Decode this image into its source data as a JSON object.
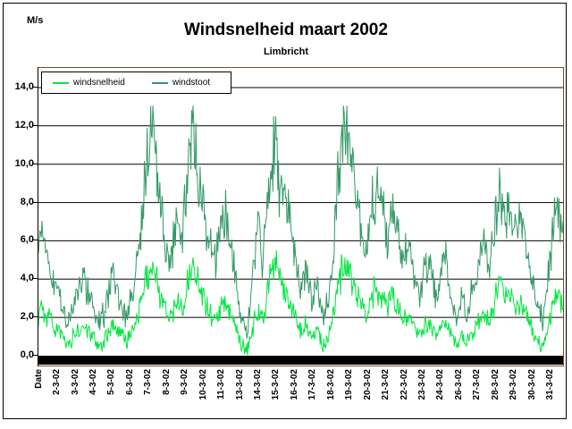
{
  "header": {
    "unit_label": "M/s",
    "title": "Windsnelheid maart 2002",
    "subtitle": "Limbricht"
  },
  "colors": {
    "windsnelheid": "#00e640",
    "windstoot": "#339966",
    "plot_border": "#7f4a1d",
    "axis": "#000000",
    "background": "#ffffff"
  },
  "chart_data": {
    "type": "line",
    "title": "Windsnelheid maart 2002",
    "subtitle": "Limbricht",
    "ylabel": "M/s",
    "xlabel": "",
    "grid": "horizontal",
    "legend_position": "top-left-inside",
    "ylim": [
      0,
      15.2
    ],
    "ytick_step": 2,
    "ytick_values": [
      0,
      2,
      4,
      6,
      8,
      10,
      12,
      14
    ],
    "ytick_labels": [
      "0,0",
      "2,0",
      "4,0",
      "6,0",
      "8,0",
      "10,0",
      "12,0",
      "14,0"
    ],
    "xtick_labels": [
      "Date",
      "2-3-02",
      "3-3-02",
      "4-3-02",
      "5-3-02",
      "6-3-02",
      "7-3-02",
      "8-3-02",
      "9-3-02",
      "10-3-02",
      "11-3-02",
      "13-3-02",
      "14-3-02",
      "15-3-02",
      "16-3-02",
      "17-3-02",
      "18-3-02",
      "19-3-02",
      "20-3-02",
      "21-3-02",
      "22-3-02",
      "23-3-02",
      "24-3-02",
      "26-3-02",
      "27-3-02",
      "28-3-02",
      "29-3-02",
      "30-3-02",
      "31-3-02"
    ],
    "x_period": "1 March 2002 - 31 March 2002, high-frequency samples",
    "series": [
      {
        "name": "windsnelheid",
        "color": "#00e640",
        "noise": {
          "rel": 0.18,
          "abs": 0.38,
          "min": 0.02,
          "max": 5.5
        },
        "anchors": [
          [
            0,
            2.2
          ],
          [
            4,
            2.7
          ],
          [
            10,
            2.0
          ],
          [
            18,
            1.5
          ],
          [
            26,
            1.0
          ],
          [
            34,
            0.6
          ],
          [
            42,
            1.2
          ],
          [
            51,
            1.5
          ],
          [
            58,
            1.1
          ],
          [
            66,
            0.5
          ],
          [
            74,
            0.7
          ],
          [
            83,
            1.6
          ],
          [
            90,
            1.0
          ],
          [
            98,
            0.8
          ],
          [
            106,
            1.4
          ],
          [
            113,
            2.6
          ],
          [
            120,
            3.8
          ],
          [
            126,
            4.6
          ],
          [
            131,
            4.3
          ],
          [
            136,
            3.2
          ],
          [
            142,
            2.4
          ],
          [
            148,
            2.0
          ],
          [
            154,
            2.9
          ],
          [
            160,
            2.4
          ],
          [
            166,
            3.7
          ],
          [
            173,
            4.9
          ],
          [
            178,
            4.0
          ],
          [
            184,
            3.1
          ],
          [
            191,
            2.3
          ],
          [
            198,
            1.9
          ],
          [
            205,
            2.6
          ],
          [
            210,
            2.8
          ],
          [
            216,
            2.0
          ],
          [
            222,
            1.2
          ],
          [
            228,
            0.5
          ],
          [
            234,
            0.3
          ],
          [
            240,
            1.6
          ],
          [
            246,
            2.5
          ],
          [
            251,
            1.7
          ],
          [
            256,
            3.4
          ],
          [
            262,
            4.8
          ],
          [
            266,
            5.2
          ],
          [
            271,
            3.6
          ],
          [
            276,
            3.4
          ],
          [
            282,
            2.8
          ],
          [
            288,
            2.0
          ],
          [
            294,
            1.3
          ],
          [
            300,
            1.7
          ],
          [
            306,
            0.9
          ],
          [
            312,
            1.4
          ],
          [
            318,
            0.6
          ],
          [
            324,
            0.9
          ],
          [
            330,
            2.2
          ],
          [
            336,
            3.9
          ],
          [
            342,
            4.7
          ],
          [
            348,
            4.5
          ],
          [
            354,
            3.6
          ],
          [
            360,
            2.7
          ],
          [
            366,
            1.9
          ],
          [
            372,
            3.0
          ],
          [
            378,
            3.6
          ],
          [
            384,
            3.4
          ],
          [
            390,
            2.6
          ],
          [
            396,
            3.1
          ],
          [
            402,
            2.5
          ],
          [
            408,
            1.9
          ],
          [
            414,
            2.2
          ],
          [
            420,
            1.5
          ],
          [
            426,
            1.1
          ],
          [
            432,
            1.6
          ],
          [
            438,
            1.8
          ],
          [
            444,
            1.0
          ],
          [
            450,
            1.4
          ],
          [
            456,
            2.0
          ],
          [
            462,
            0.9
          ],
          [
            468,
            0.6
          ],
          [
            474,
            1.1
          ],
          [
            480,
            0.7
          ],
          [
            486,
            1.2
          ],
          [
            492,
            1.7
          ],
          [
            498,
            2.4
          ],
          [
            504,
            1.8
          ],
          [
            510,
            2.7
          ],
          [
            516,
            3.8
          ],
          [
            522,
            3.3
          ],
          [
            528,
            3.4
          ],
          [
            534,
            2.7
          ],
          [
            540,
            2.8
          ],
          [
            546,
            2.1
          ],
          [
            552,
            1.4
          ],
          [
            558,
            0.8
          ],
          [
            564,
            0.5
          ],
          [
            570,
            1.5
          ],
          [
            576,
            2.7
          ],
          [
            581,
            3.2
          ],
          [
            588,
            2.4
          ]
        ]
      },
      {
        "name": "windstoot",
        "color": "#339966",
        "noise": {
          "rel": 0.16,
          "abs": 0.5,
          "min": 0.25,
          "max": 13.05
        },
        "anchors": [
          [
            0,
            5.5
          ],
          [
            4,
            7.2
          ],
          [
            10,
            5.0
          ],
          [
            18,
            3.8
          ],
          [
            26,
            2.6
          ],
          [
            34,
            1.8
          ],
          [
            42,
            3.2
          ],
          [
            51,
            4.0
          ],
          [
            58,
            3.0
          ],
          [
            66,
            1.8
          ],
          [
            74,
            2.2
          ],
          [
            83,
            4.3
          ],
          [
            90,
            2.8
          ],
          [
            98,
            2.2
          ],
          [
            106,
            3.5
          ],
          [
            113,
            6.3
          ],
          [
            120,
            9.5
          ],
          [
            126,
            12.4
          ],
          [
            131,
            11.0
          ],
          [
            136,
            8.0
          ],
          [
            142,
            6.0
          ],
          [
            148,
            5.0
          ],
          [
            154,
            7.2
          ],
          [
            160,
            6.0
          ],
          [
            166,
            9.0
          ],
          [
            173,
            12.8
          ],
          [
            178,
            10.0
          ],
          [
            184,
            8.0
          ],
          [
            191,
            6.0
          ],
          [
            198,
            5.0
          ],
          [
            205,
            6.8
          ],
          [
            210,
            7.4
          ],
          [
            216,
            5.5
          ],
          [
            222,
            3.5
          ],
          [
            228,
            1.8
          ],
          [
            234,
            1.2
          ],
          [
            240,
            4.5
          ],
          [
            246,
            6.8
          ],
          [
            251,
            4.5
          ],
          [
            256,
            8.0
          ],
          [
            262,
            10.5
          ],
          [
            266,
            10.8
          ],
          [
            271,
            8.0
          ],
          [
            276,
            8.4
          ],
          [
            282,
            7.0
          ],
          [
            288,
            5.0
          ],
          [
            294,
            3.5
          ],
          [
            300,
            4.6
          ],
          [
            306,
            2.5
          ],
          [
            312,
            3.8
          ],
          [
            318,
            2.0
          ],
          [
            324,
            2.6
          ],
          [
            330,
            5.5
          ],
          [
            336,
            9.5
          ],
          [
            342,
            11.8
          ],
          [
            348,
            12.0
          ],
          [
            354,
            9.5
          ],
          [
            360,
            7.0
          ],
          [
            366,
            5.0
          ],
          [
            372,
            7.5
          ],
          [
            378,
            9.0
          ],
          [
            384,
            8.6
          ],
          [
            390,
            6.5
          ],
          [
            396,
            7.8
          ],
          [
            402,
            6.5
          ],
          [
            408,
            5.0
          ],
          [
            414,
            5.8
          ],
          [
            420,
            4.2
          ],
          [
            426,
            3.2
          ],
          [
            432,
            4.5
          ],
          [
            438,
            5.0
          ],
          [
            444,
            3.0
          ],
          [
            450,
            4.2
          ],
          [
            456,
            5.8
          ],
          [
            462,
            2.8
          ],
          [
            468,
            2.0
          ],
          [
            474,
            3.2
          ],
          [
            480,
            2.2
          ],
          [
            486,
            3.5
          ],
          [
            492,
            4.5
          ],
          [
            498,
            6.0
          ],
          [
            504,
            4.5
          ],
          [
            510,
            6.5
          ],
          [
            516,
            8.2
          ],
          [
            522,
            7.0
          ],
          [
            528,
            7.8
          ],
          [
            534,
            6.5
          ],
          [
            540,
            7.2
          ],
          [
            546,
            5.5
          ],
          [
            552,
            4.0
          ],
          [
            558,
            2.5
          ],
          [
            564,
            1.8
          ],
          [
            570,
            4.0
          ],
          [
            576,
            6.5
          ],
          [
            581,
            7.3
          ],
          [
            588,
            5.8
          ]
        ]
      }
    ]
  },
  "legend": {
    "items": [
      {
        "label": "windsnelheid",
        "color": "#00e640"
      },
      {
        "label": "windstoot",
        "color": "#339966"
      }
    ]
  }
}
